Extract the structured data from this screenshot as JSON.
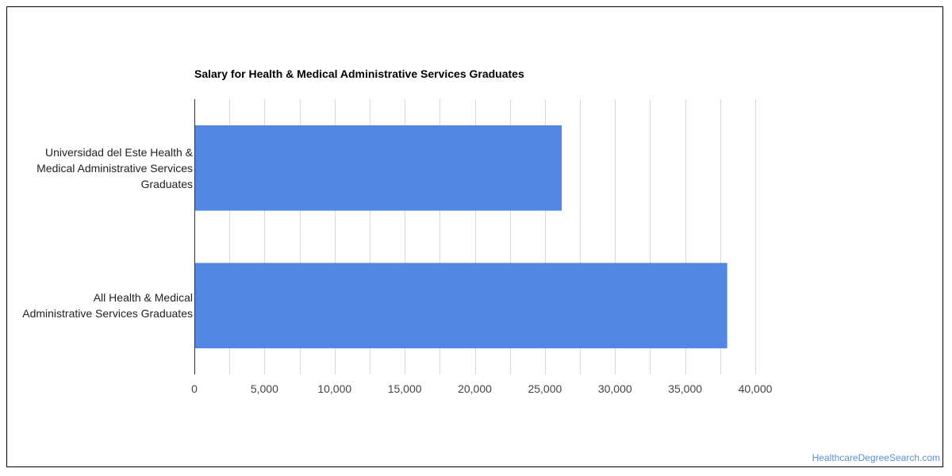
{
  "chart_data": {
    "type": "bar",
    "orientation": "horizontal",
    "title": "Salary for Health & Medical Administrative Services Graduates",
    "categories": [
      "Universidad del Este Health & Medical Administrative Services Graduates",
      "All Health & Medical Administrative Services Graduates"
    ],
    "category_lines": [
      [
        "Universidad del Este Health &",
        "Medical Administrative Services",
        "Graduates"
      ],
      [
        "All Health & Medical",
        "Administrative Services Graduates"
      ]
    ],
    "values": [
      26200,
      38000
    ],
    "xlim": [
      0,
      40000
    ],
    "x_ticks": [
      0,
      5000,
      10000,
      15000,
      20000,
      25000,
      30000,
      35000,
      40000
    ],
    "x_tick_labels": [
      "0",
      "5,000",
      "10,000",
      "15,000",
      "20,000",
      "25,000",
      "30,000",
      "35,000",
      "40,000"
    ],
    "xlabel": "",
    "ylabel": "",
    "grid": true,
    "bar_color": "#5286e3"
  },
  "footer": {
    "source_link": "HealthcareDegreeSearch.com"
  },
  "colors": {
    "bar": "#5286e3",
    "grid": "#d9d9d9",
    "axis": "#333333",
    "link": "#5a8fd8"
  }
}
